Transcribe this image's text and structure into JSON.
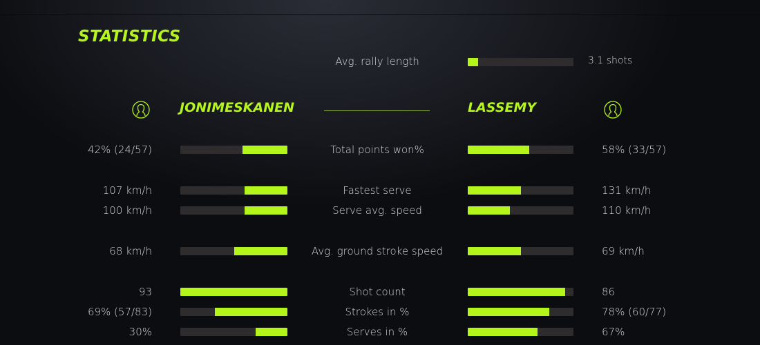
{
  "title": "STATISTICS",
  "accent_color": "#b4f51c",
  "avg_rally": {
    "label": "Avg. rally length",
    "value": "3.1 shots",
    "fill": 0.1
  },
  "players": {
    "left": {
      "name": "JONIMESKANEN",
      "icon": "user-circle-icon"
    },
    "right": {
      "name": "LASSEMY",
      "icon": "user-circle-icon"
    }
  },
  "stats": [
    {
      "label": "Total points won%",
      "left": "42% (24/57)",
      "right": "58% (33/57)",
      "left_fill": 0.42,
      "right_fill": 0.58
    },
    {
      "label": "Fastest serve",
      "left": "107 km/h",
      "right": "131 km/h",
      "left_fill": 0.4,
      "right_fill": 0.5
    },
    {
      "label": "Serve avg. speed",
      "left": "100 km/h",
      "right": "110 km/h",
      "left_fill": 0.4,
      "right_fill": 0.4
    },
    {
      "label": "Avg. ground stroke speed",
      "left": "68 km/h",
      "right": "69 km/h",
      "left_fill": 0.5,
      "right_fill": 0.5
    },
    {
      "label": "Shot count",
      "left": "93",
      "right": "86",
      "left_fill": 1.0,
      "right_fill": 0.92
    },
    {
      "label": "Strokes in %",
      "left": "69% (57/83)",
      "right": "78% (60/77)",
      "left_fill": 0.68,
      "right_fill": 0.77
    },
    {
      "label": "Serves in %",
      "left": "30%",
      "right": "67%",
      "left_fill": 0.3,
      "right_fill": 0.66
    }
  ]
}
